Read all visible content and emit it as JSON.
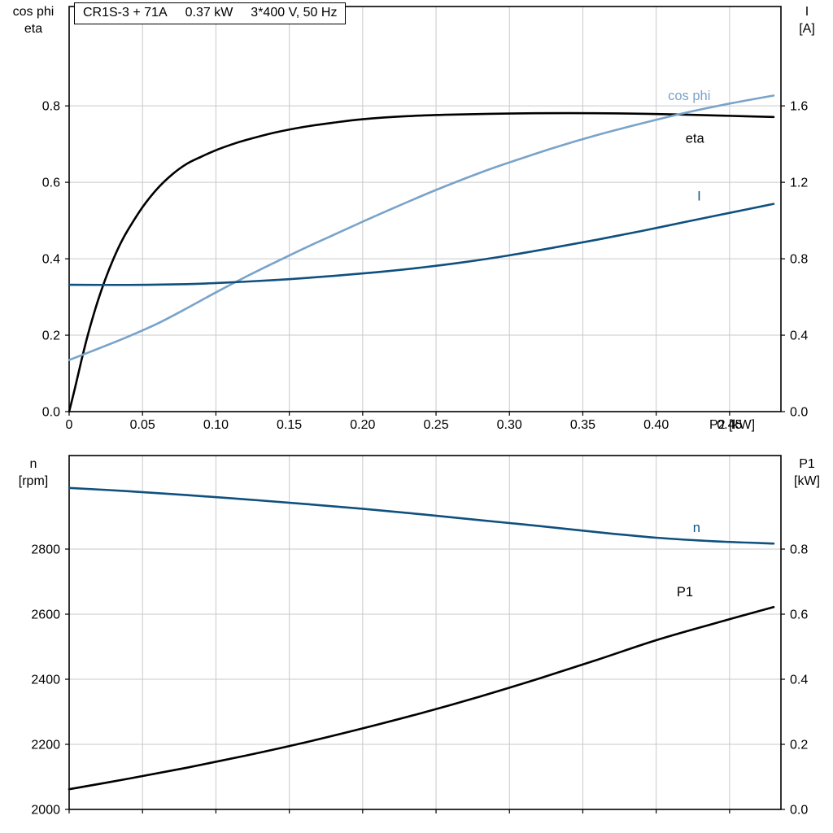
{
  "chart_data": [
    {
      "type": "line",
      "title_parts": [
        "CR1S-3 + 71A",
        "0.37 kW",
        "3*400 V, 50 Hz"
      ],
      "xlabel": "P2 [kW]",
      "xlim": [
        0,
        0.485
      ],
      "xticks": [
        0,
        0.05,
        0.1,
        0.15,
        0.2,
        0.25,
        0.3,
        0.35,
        0.4,
        0.45
      ],
      "xtick_labels": [
        "0",
        "0.05",
        "0.10",
        "0.15",
        "0.20",
        "0.25",
        "0.30",
        "0.35",
        "0.40",
        "0.45"
      ],
      "grid": true,
      "grid_color": "#c9c9c9",
      "left_axis": {
        "title_lines": [
          "cos phi",
          "eta"
        ],
        "lim": [
          0,
          1.06
        ],
        "ticks": [
          0,
          0.2,
          0.4,
          0.6,
          0.8
        ],
        "tick_labels": [
          "0.0",
          "0.2",
          "0.4",
          "0.6",
          "0.8"
        ]
      },
      "right_axis": {
        "title_lines": [
          "I",
          "[A]"
        ],
        "lim": [
          0,
          2.12
        ],
        "ticks": [
          0,
          0.4,
          0.8,
          1.2,
          1.6
        ],
        "tick_labels": [
          "0.0",
          "0.4",
          "0.8",
          "1.2",
          "1.6"
        ]
      },
      "series": [
        {
          "name": "eta",
          "label": "eta",
          "axis": "left",
          "color": "#000000",
          "label_pos": [
            0.42,
            0.704
          ],
          "points": [
            [
              0,
              0
            ],
            [
              0.004,
              0.062
            ],
            [
              0.008,
              0.128
            ],
            [
              0.012,
              0.19
            ],
            [
              0.016,
              0.245
            ],
            [
              0.02,
              0.295
            ],
            [
              0.025,
              0.35
            ],
            [
              0.03,
              0.398
            ],
            [
              0.035,
              0.44
            ],
            [
              0.04,
              0.475
            ],
            [
              0.05,
              0.535
            ],
            [
              0.06,
              0.583
            ],
            [
              0.07,
              0.62
            ],
            [
              0.08,
              0.648
            ],
            [
              0.09,
              0.667
            ],
            [
              0.1,
              0.684
            ],
            [
              0.11,
              0.698
            ],
            [
              0.12,
              0.71
            ],
            [
              0.14,
              0.73
            ],
            [
              0.16,
              0.745
            ],
            [
              0.18,
              0.756
            ],
            [
              0.2,
              0.765
            ],
            [
              0.23,
              0.773
            ],
            [
              0.26,
              0.777
            ],
            [
              0.3,
              0.78
            ],
            [
              0.34,
              0.781
            ],
            [
              0.38,
              0.78
            ],
            [
              0.42,
              0.777
            ],
            [
              0.45,
              0.774
            ],
            [
              0.48,
              0.771
            ]
          ]
        },
        {
          "name": "cos-phi",
          "label": "cos phi",
          "axis": "left",
          "color": "#79a3c9",
          "label_pos": [
            0.408,
            0.815
          ],
          "points": [
            [
              0,
              0.135
            ],
            [
              0.02,
              0.165
            ],
            [
              0.04,
              0.196
            ],
            [
              0.06,
              0.23
            ],
            [
              0.08,
              0.27
            ],
            [
              0.1,
              0.312
            ],
            [
              0.12,
              0.352
            ],
            [
              0.14,
              0.39
            ],
            [
              0.16,
              0.427
            ],
            [
              0.18,
              0.462
            ],
            [
              0.2,
              0.497
            ],
            [
              0.22,
              0.531
            ],
            [
              0.25,
              0.58
            ],
            [
              0.28,
              0.625
            ],
            [
              0.3,
              0.652
            ],
            [
              0.33,
              0.69
            ],
            [
              0.36,
              0.724
            ],
            [
              0.39,
              0.754
            ],
            [
              0.42,
              0.782
            ],
            [
              0.45,
              0.806
            ],
            [
              0.48,
              0.827
            ]
          ]
        },
        {
          "name": "I",
          "label": "I",
          "axis": "right",
          "color": "#0f507f",
          "label_pos": [
            0.428,
            1.105
          ],
          "points": [
            [
              0,
              0.664
            ],
            [
              0.04,
              0.663
            ],
            [
              0.08,
              0.667
            ],
            [
              0.1,
              0.673
            ],
            [
              0.12,
              0.68
            ],
            [
              0.15,
              0.693
            ],
            [
              0.18,
              0.71
            ],
            [
              0.21,
              0.73
            ],
            [
              0.24,
              0.754
            ],
            [
              0.27,
              0.783
            ],
            [
              0.3,
              0.818
            ],
            [
              0.33,
              0.858
            ],
            [
              0.36,
              0.9
            ],
            [
              0.39,
              0.945
            ],
            [
              0.42,
              0.993
            ],
            [
              0.45,
              1.04
            ],
            [
              0.48,
              1.087
            ]
          ]
        }
      ]
    },
    {
      "type": "line",
      "xlabel": "",
      "xlim": [
        0,
        0.485
      ],
      "xticks": [
        0,
        0.05,
        0.1,
        0.15,
        0.2,
        0.25,
        0.3,
        0.35,
        0.4,
        0.45
      ],
      "xtick_labels": [],
      "grid": true,
      "grid_color": "#c9c9c9",
      "left_axis": {
        "title_lines": [
          "n",
          "[rpm]"
        ],
        "lim": [
          2000,
          3087.5
        ],
        "ticks": [
          2000,
          2200,
          2400,
          2600,
          2800
        ],
        "tick_labels": [
          "2000",
          "2200",
          "2400",
          "2600",
          "2800"
        ]
      },
      "right_axis": {
        "title_lines": [
          "P1",
          "[kW]"
        ],
        "lim": [
          0,
          1.0875
        ],
        "ticks": [
          0,
          0.2,
          0.4,
          0.6,
          0.8
        ],
        "tick_labels": [
          "0.0",
          "0.2",
          "0.4",
          "0.6",
          "0.8"
        ]
      },
      "series": [
        {
          "name": "n",
          "label": "n",
          "axis": "left",
          "color": "#0f507f",
          "label_pos": [
            0.425,
            2852
          ],
          "points": [
            [
              0,
              2988
            ],
            [
              0.04,
              2978
            ],
            [
              0.08,
              2966
            ],
            [
              0.12,
              2953
            ],
            [
              0.16,
              2939
            ],
            [
              0.2,
              2924
            ],
            [
              0.24,
              2907
            ],
            [
              0.28,
              2889
            ],
            [
              0.32,
              2871
            ],
            [
              0.36,
              2852
            ],
            [
              0.4,
              2835
            ],
            [
              0.44,
              2824
            ],
            [
              0.48,
              2817
            ]
          ]
        },
        {
          "name": "P1",
          "label": "P1",
          "axis": "right",
          "color": "#000000",
          "label_pos": [
            0.414,
            0.655
          ],
          "points": [
            [
              0,
              0.062
            ],
            [
              0.04,
              0.094
            ],
            [
              0.08,
              0.128
            ],
            [
              0.12,
              0.165
            ],
            [
              0.16,
              0.205
            ],
            [
              0.2,
              0.249
            ],
            [
              0.24,
              0.296
            ],
            [
              0.28,
              0.347
            ],
            [
              0.32,
              0.402
            ],
            [
              0.36,
              0.46
            ],
            [
              0.4,
              0.52
            ],
            [
              0.44,
              0.572
            ],
            [
              0.48,
              0.622
            ]
          ]
        }
      ]
    }
  ]
}
